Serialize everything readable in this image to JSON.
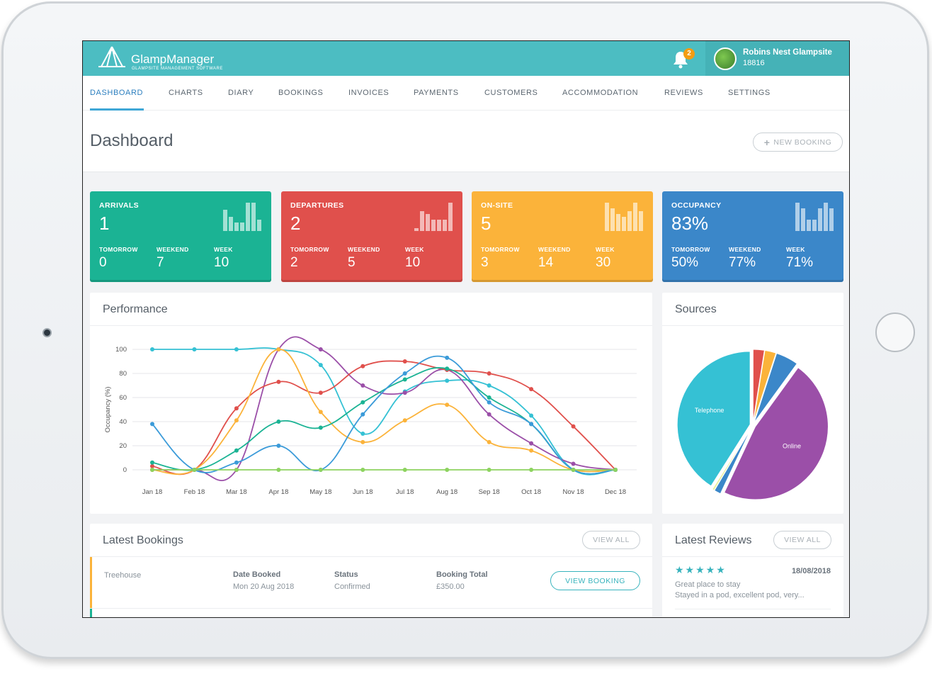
{
  "brand": {
    "name": "GlampManager",
    "tagline": "GLAMPSITE MANAGEMENT SOFTWARE"
  },
  "notifications": {
    "count": "2",
    "icon": "bell-icon"
  },
  "user": {
    "name": "Robins Nest Glampsite",
    "id": "18816"
  },
  "nav": {
    "items": [
      {
        "label": "DASHBOARD",
        "active": true
      },
      {
        "label": "CHARTS"
      },
      {
        "label": "DIARY"
      },
      {
        "label": "BOOKINGS"
      },
      {
        "label": "INVOICES"
      },
      {
        "label": "PAYMENTS"
      },
      {
        "label": "CUSTOMERS"
      },
      {
        "label": "ACCOMMODATION"
      },
      {
        "label": "REVIEWS"
      },
      {
        "label": "SETTINGS"
      }
    ]
  },
  "page": {
    "title": "Dashboard",
    "new_booking_label": "NEW BOOKING"
  },
  "stats": [
    {
      "label": "ARRIVALS",
      "value": "1",
      "color": "#1bb394",
      "tomorrow_label": "TOMORROW",
      "tomorrow": "0",
      "weekend_label": "WEEKEND",
      "weekend": "7",
      "week_label": "WEEK",
      "week": "10",
      "bars": [
        0.75,
        0.5,
        0.3,
        0.3,
        1.0,
        1.0,
        0.4
      ]
    },
    {
      "label": "DEPARTURES",
      "value": "2",
      "color": "#e0504c",
      "tomorrow_label": "TOMORROW",
      "tomorrow": "2",
      "weekend_label": "WEEKEND",
      "weekend": "5",
      "week_label": "WEEK",
      "week": "10",
      "bars": [
        0.1,
        0.7,
        0.6,
        0.4,
        0.4,
        0.4,
        1.0
      ]
    },
    {
      "label": "ON-SITE",
      "value": "5",
      "color": "#fbb33a",
      "tomorrow_label": "TOMORROW",
      "tomorrow": "3",
      "weekend_label": "WEEKEND",
      "weekend": "14",
      "week_label": "WEEK",
      "week": "30",
      "bars": [
        1.0,
        0.8,
        0.6,
        0.5,
        0.7,
        1.0,
        0.7
      ]
    },
    {
      "label": "OCCUPANCY",
      "value": "83%",
      "color": "#3b87c9",
      "tomorrow_label": "TOMORROW",
      "tomorrow": "50%",
      "weekend_label": "WEEKEND",
      "weekend": "77%",
      "week_label": "WEEK",
      "week": "71%",
      "bars": [
        1.0,
        0.8,
        0.4,
        0.4,
        0.8,
        1.0,
        0.8
      ]
    }
  ],
  "performance": {
    "title": "Performance",
    "chart_data": {
      "type": "line",
      "ylabel": "Occupancy (%)",
      "ylim": [
        0,
        100
      ],
      "yticks": [
        "0",
        "20",
        "40",
        "60",
        "80",
        "100"
      ],
      "categories": [
        "Jan 18",
        "Feb 18",
        "Mar 18",
        "Apr 18",
        "May 18",
        "Jun 18",
        "Jul 18",
        "Aug 18",
        "Sep 18",
        "Oct 18",
        "Nov 18",
        "Dec 18"
      ],
      "series": [
        {
          "color": "#35c1d4",
          "values": [
            100,
            100,
            100,
            100,
            87,
            30,
            65,
            74,
            70,
            45,
            0,
            0
          ]
        },
        {
          "color": "#9b4fa8",
          "values": [
            0,
            0,
            0,
            100,
            100,
            70,
            64,
            83,
            46,
            22,
            5,
            0
          ]
        },
        {
          "color": "#e0504c",
          "values": [
            3,
            0,
            51,
            73,
            64,
            86,
            90,
            83,
            80,
            67,
            36,
            0
          ]
        },
        {
          "color": "#fbb33a",
          "values": [
            0,
            0,
            41,
            100,
            48,
            23,
            41,
            54,
            23,
            16,
            0,
            0
          ]
        },
        {
          "color": "#1bb394",
          "values": [
            6,
            0,
            16,
            40,
            35,
            56,
            75,
            84,
            60,
            38,
            0,
            0
          ]
        },
        {
          "color": "#3b9bd9",
          "values": [
            38,
            0,
            6,
            20,
            0,
            46,
            80,
            93,
            56,
            38,
            0,
            0
          ]
        },
        {
          "color": "#8dd35f",
          "values": [
            0,
            0,
            0,
            0,
            0,
            0,
            0,
            0,
            0,
            0,
            0,
            0
          ]
        }
      ]
    }
  },
  "sources": {
    "title": "Sources",
    "chart_data": {
      "type": "pie",
      "slices": [
        {
          "label": "",
          "value": 2.5,
          "color": "#e0504c"
        },
        {
          "label": "",
          "value": 2.5,
          "color": "#fbb33a"
        },
        {
          "label": "",
          "value": 5,
          "color": "#3b87c9"
        },
        {
          "label": "Online",
          "value": 47,
          "color": "#9b4fa8"
        },
        {
          "label": "",
          "value": 1.5,
          "color": "#3b87c9"
        },
        {
          "label": "",
          "value": 0.5,
          "color": "#e8f2a0"
        },
        {
          "label": "Telephone",
          "value": 41,
          "color": "#35c1d4"
        }
      ]
    }
  },
  "latest_bookings": {
    "title": "Latest Bookings",
    "view_all_label": "VIEW ALL",
    "rows": [
      {
        "accommodation": "Treehouse",
        "date_label": "Date Booked",
        "date": "Mon 20 Aug 2018",
        "status_label": "Status",
        "status": "Confirmed",
        "total_label": "Booking Total",
        "total": "£350.00",
        "button_label": "VIEW BOOKING",
        "accent": "#fbb33a"
      }
    ]
  },
  "latest_reviews": {
    "title": "Latest Reviews",
    "view_all_label": "VIEW ALL",
    "reviews": [
      {
        "stars": "★★★★★",
        "date": "18/08/2018",
        "title": "Great place to stay",
        "excerpt": "Stayed in a pod, excellent pod, very..."
      }
    ]
  }
}
